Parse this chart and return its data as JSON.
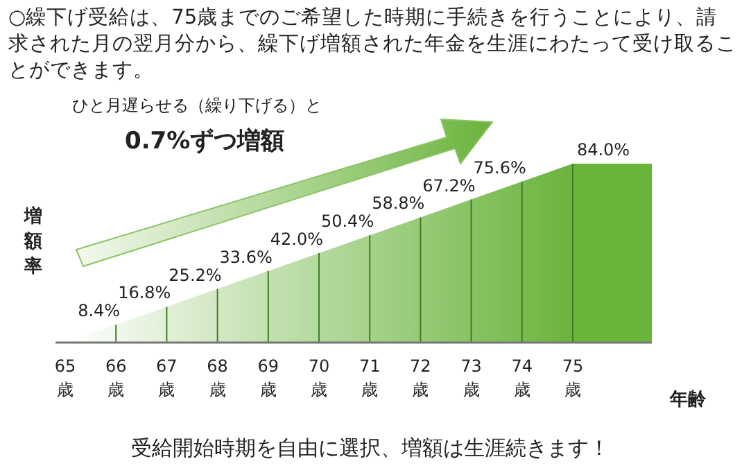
{
  "chart_data": {
    "type": "area",
    "title": "○繰下げ受給は、75歳までのご希望した時期に手続きを行うことにより、請求された月の翌月分から、繰下げ増額された年金を生涯にわたって受け取ることができます。",
    "categories": [
      "65歳",
      "66歳",
      "67歳",
      "68歳",
      "69歳",
      "70歳",
      "71歳",
      "72歳",
      "73歳",
      "74歳",
      "75歳"
    ],
    "values": [
      0,
      8.4,
      16.8,
      25.2,
      33.6,
      42.0,
      50.4,
      58.8,
      67.2,
      75.6,
      84.0
    ],
    "value_labels": [
      null,
      "8.4%",
      "16.8%",
      "25.2%",
      "33.6%",
      "42.0%",
      "50.4%",
      "58.8%",
      "67.2%",
      "75.6%",
      "84.0%"
    ],
    "color": "#6ab43c",
    "grid": "x",
    "xlabel": "年齢",
    "ylabel": "増額率",
    "annotations": [
      "ひと月遅らせる（繰り下げる）と",
      "0.7%ずつ増額",
      "受給開始時期を自由に選択、増額は生涯続きます！"
    ]
  }
}
